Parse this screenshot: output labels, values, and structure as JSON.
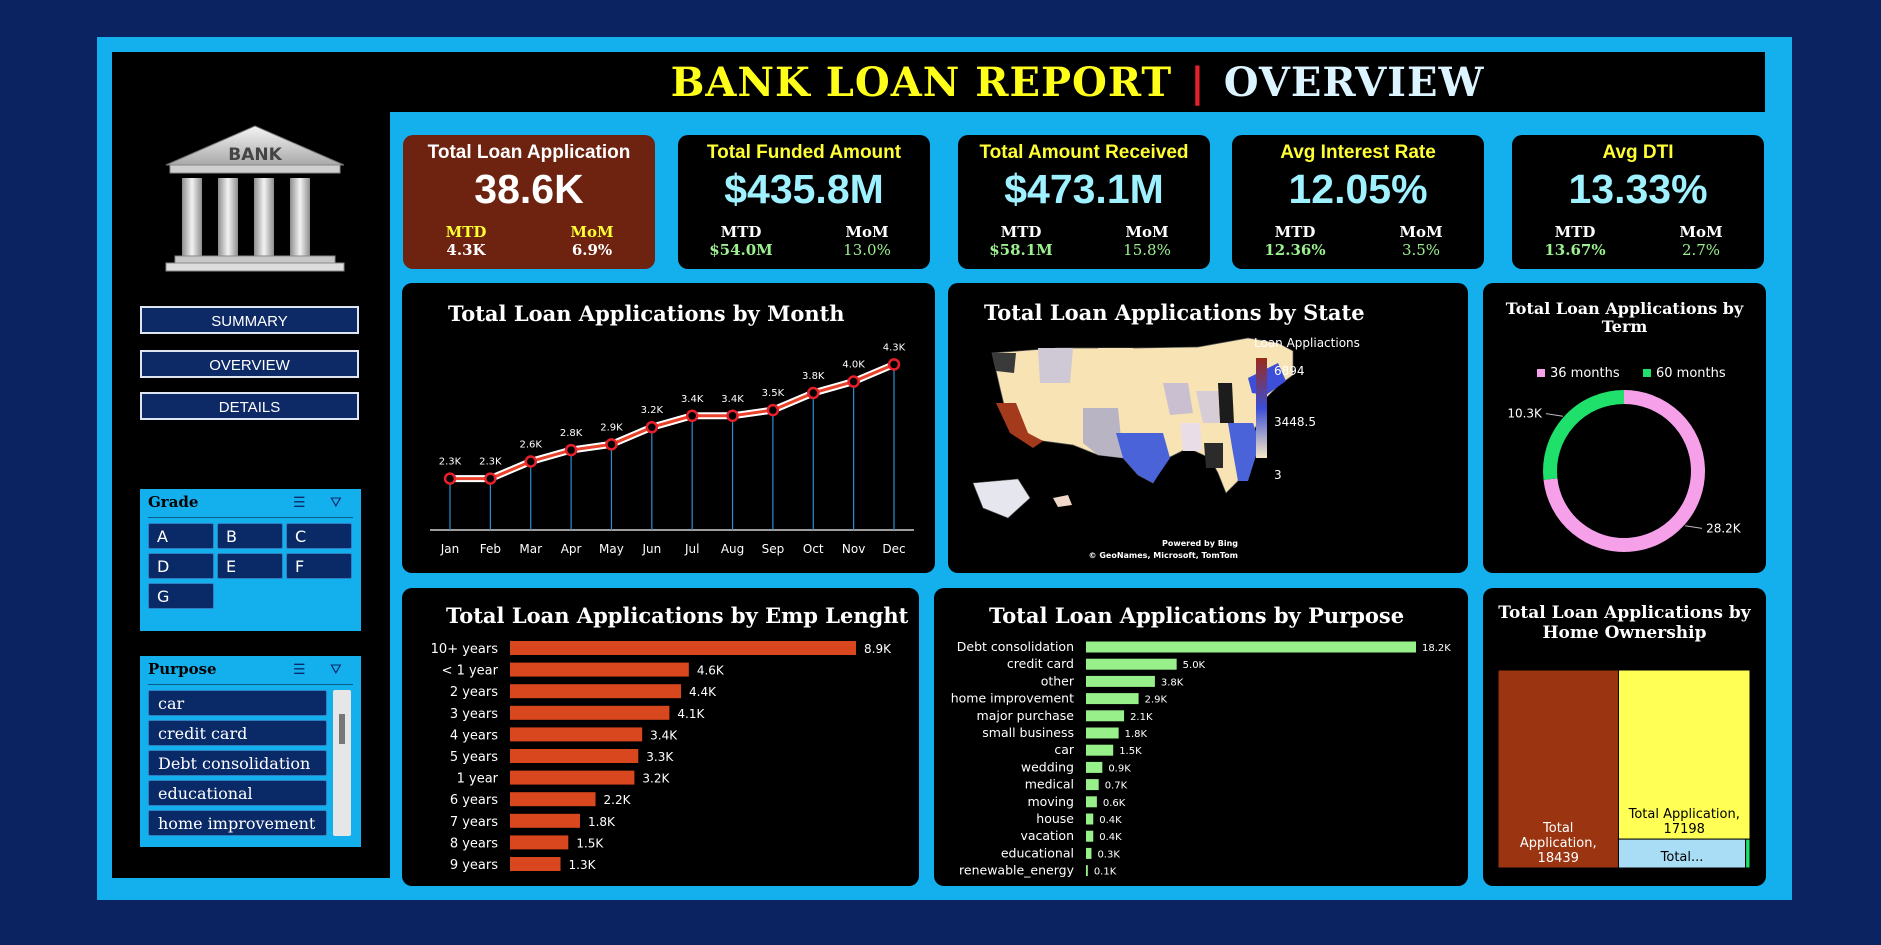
{
  "header": {
    "title": "BANK LOAN REPORT",
    "separator": "|",
    "subtitle": "OVERVIEW"
  },
  "logo": {
    "text": "BANK"
  },
  "nav": {
    "summary": "SUMMARY",
    "overview": "OVERVIEW",
    "details": "DETAILS"
  },
  "kpis": [
    {
      "label": "Total Loan Application",
      "value": "38.6K",
      "mtd_label": "MTD",
      "mtd": "4.3K",
      "mom_label": "MoM",
      "mom": "6.9%"
    },
    {
      "label": "Total Funded Amount",
      "value": "$435.8M",
      "mtd_label": "MTD",
      "mtd": "$54.0M",
      "mom_label": "MoM",
      "mom": "13.0%"
    },
    {
      "label": "Total Amount Received",
      "value": "$473.1M",
      "mtd_label": "MTD",
      "mtd": "$58.1M",
      "mom_label": "MoM",
      "mom": "15.8%"
    },
    {
      "label": "Avg Interest Rate",
      "value": "12.05%",
      "mtd_label": "MTD",
      "mtd": "12.36%",
      "mom_label": "MoM",
      "mom": "3.5%"
    },
    {
      "label": "Avg DTI",
      "value": "13.33%",
      "mtd_label": "MTD",
      "mtd": "13.67%",
      "mom_label": "MoM",
      "mom": "2.7%"
    }
  ],
  "grade_slicer": {
    "title": "Grade",
    "items": [
      "A",
      "B",
      "C",
      "D",
      "E",
      "F",
      "G"
    ]
  },
  "purpose_slicer": {
    "title": "Purpose",
    "items": [
      "car",
      "credit card",
      "Debt consolidation",
      "educational",
      "home improvement"
    ]
  },
  "map": {
    "title": "Total Loan Applications by State",
    "legend_title": "Loan Appliactions",
    "legend_max": "6894",
    "legend_mid": "3448.5",
    "legend_min": "3",
    "credit1": "Powered by Bing",
    "credit2": "© GeoNames, Microsoft, TomTom"
  },
  "colors": {
    "frame": "#14b0ee",
    "background": "#0b2360",
    "title_yellow": "#ffff1a",
    "kpi_value": "#9ff1ff",
    "first_kpi_bg": "#6e2310",
    "line": "#e8432a",
    "emp_bar": "#d9471e",
    "purpose_bar": "#98f08a",
    "term_36": "#f5a0e8",
    "term_60": "#1ee06a",
    "home_mortgage": "#9b3511",
    "home_rent": "#ffff55",
    "home_own": "#a8ddf5",
    "home_other": "#1ee06a"
  },
  "chart_data": [
    {
      "type": "line",
      "title": "Total Loan Applications by Month",
      "categories": [
        "Jan",
        "Feb",
        "Mar",
        "Apr",
        "May",
        "Jun",
        "Jul",
        "Aug",
        "Sep",
        "Oct",
        "Nov",
        "Dec"
      ],
      "values": [
        2300,
        2300,
        2600,
        2800,
        2900,
        3200,
        3400,
        3400,
        3500,
        3800,
        4000,
        4300
      ],
      "labels": [
        "2.3K",
        "2.3K",
        "2.6K",
        "2.8K",
        "2.9K",
        "3.2K",
        "3.4K",
        "3.4K",
        "3.5K",
        "3.8K",
        "4.0K",
        "4.3K"
      ],
      "ylim": [
        0,
        4600
      ]
    },
    {
      "type": "bar",
      "title": "Total Loan Applications by Emp Lenght",
      "categories": [
        "10+ years",
        "< 1 year",
        "2 years",
        "3 years",
        "4 years",
        "5 years",
        "1 year",
        "6 years",
        "7 years",
        "8 years",
        "9 years"
      ],
      "values": [
        8900,
        4600,
        4400,
        4100,
        3400,
        3300,
        3200,
        2200,
        1800,
        1500,
        1300
      ],
      "labels": [
        "8.9K",
        "4.6K",
        "4.4K",
        "4.1K",
        "3.4K",
        "3.3K",
        "3.2K",
        "2.2K",
        "1.8K",
        "1.5K",
        "1.3K"
      ]
    },
    {
      "type": "bar",
      "title": "Total Loan Applications by Purpose",
      "categories": [
        "Debt consolidation",
        "credit card",
        "other",
        "home improvement",
        "major purchase",
        "small business",
        "car",
        "wedding",
        "medical",
        "moving",
        "house",
        "vacation",
        "educational",
        "renewable_energy"
      ],
      "values": [
        18200,
        5000,
        3800,
        2900,
        2100,
        1800,
        1500,
        900,
        700,
        600,
        400,
        400,
        300,
        100
      ],
      "labels": [
        "18.2K",
        "5.0K",
        "3.8K",
        "2.9K",
        "2.1K",
        "1.8K",
        "1.5K",
        "0.9K",
        "0.7K",
        "0.6K",
        "0.4K",
        "0.4K",
        "0.3K",
        "0.1K"
      ]
    },
    {
      "type": "pie",
      "title": "Total Loan Applications by Term",
      "series": [
        {
          "name": "36 months",
          "value": 28200,
          "label": "28.2K"
        },
        {
          "name": "60 months",
          "value": 10300,
          "label": "10.3K"
        }
      ]
    },
    {
      "type": "heatmap",
      "title": "Total Loan Applications by Home Ownership",
      "cells": [
        {
          "label": "Total Application, 18439",
          "value": 18439
        },
        {
          "label": "Total Application, 17198",
          "value": 17198
        },
        {
          "label": "Total...",
          "value": 2838
        },
        {
          "label": "",
          "value": 98
        }
      ]
    }
  ]
}
